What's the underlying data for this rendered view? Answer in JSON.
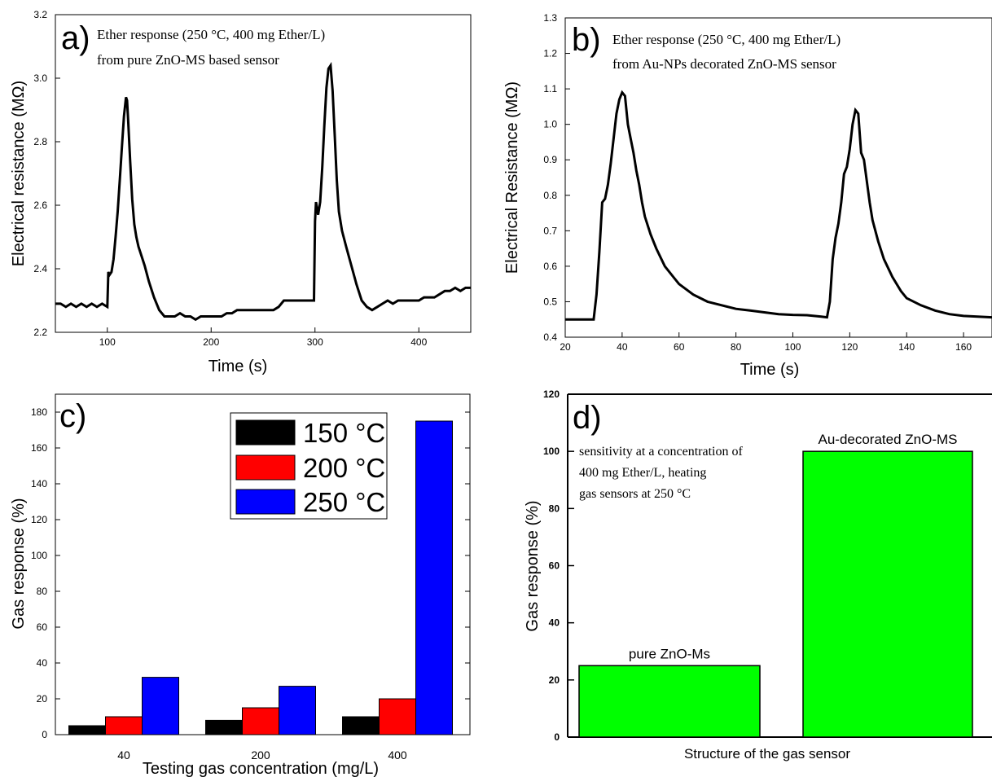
{
  "chart_data": [
    {
      "panel": "a)",
      "type": "line",
      "annotation": [
        "Ether response (250 °C, 400 mg Ether/L)",
        "from pure ZnO-MS based sensor"
      ],
      "xlabel": "Time (s)",
      "ylabel": "Electrical resistance (MΩ)",
      "xlim": [
        50,
        450
      ],
      "ylim": [
        2.2,
        3.2
      ],
      "xticks": [
        100,
        200,
        300,
        400
      ],
      "yticks": [
        2.2,
        2.4,
        2.6,
        2.8,
        3.0,
        3.2
      ],
      "ytick_labels": [
        "2.2",
        "2.4",
        "2.6",
        "2.8",
        "3.0",
        "3.2"
      ],
      "color": "#000000",
      "x": [
        50,
        55,
        60,
        65,
        70,
        75,
        80,
        85,
        90,
        95,
        100,
        101,
        102,
        104,
        106,
        108,
        110,
        112,
        114,
        116,
        118,
        119,
        120,
        122,
        124,
        126,
        128,
        130,
        133,
        136,
        140,
        145,
        150,
        155,
        160,
        165,
        170,
        175,
        180,
        185,
        190,
        195,
        200,
        205,
        210,
        215,
        220,
        225,
        230,
        235,
        240,
        245,
        250,
        255,
        260,
        265,
        270,
        275,
        280,
        285,
        290,
        295,
        299,
        300,
        301,
        303,
        305,
        307,
        309,
        311,
        313,
        315,
        317,
        319,
        321,
        323,
        326,
        330,
        335,
        340,
        345,
        350,
        355,
        360,
        365,
        370,
        375,
        380,
        385,
        390,
        395,
        400,
        405,
        410,
        415,
        420,
        425,
        430,
        435,
        440,
        445,
        450
      ],
      "y": [
        2.29,
        2.29,
        2.28,
        2.29,
        2.28,
        2.29,
        2.28,
        2.29,
        2.28,
        2.29,
        2.28,
        2.39,
        2.38,
        2.39,
        2.43,
        2.5,
        2.58,
        2.68,
        2.78,
        2.88,
        2.94,
        2.93,
        2.87,
        2.74,
        2.62,
        2.54,
        2.5,
        2.47,
        2.44,
        2.41,
        2.36,
        2.31,
        2.27,
        2.25,
        2.25,
        2.25,
        2.26,
        2.25,
        2.25,
        2.24,
        2.25,
        2.25,
        2.25,
        2.25,
        2.25,
        2.26,
        2.26,
        2.27,
        2.27,
        2.27,
        2.27,
        2.27,
        2.27,
        2.27,
        2.27,
        2.28,
        2.3,
        2.3,
        2.3,
        2.3,
        2.3,
        2.3,
        2.3,
        2.55,
        2.61,
        2.57,
        2.61,
        2.72,
        2.85,
        2.97,
        3.03,
        3.04,
        2.96,
        2.82,
        2.68,
        2.58,
        2.52,
        2.47,
        2.41,
        2.35,
        2.3,
        2.28,
        2.27,
        2.28,
        2.29,
        2.3,
        2.29,
        2.3,
        2.3,
        2.3,
        2.3,
        2.3,
        2.31,
        2.31,
        2.31,
        2.32,
        2.33,
        2.33,
        2.34,
        2.33,
        2.34,
        2.34
      ]
    },
    {
      "panel": "b)",
      "type": "line",
      "annotation": [
        "Ether response (250 °C, 400 mg Ether/L)",
        "from Au-NPs decorated ZnO-MS sensor"
      ],
      "xlabel": "Time (s)",
      "ylabel": "Electrical Resistance (MΩ)",
      "xlim": [
        20,
        170
      ],
      "ylim": [
        0.4,
        1.3
      ],
      "xticks": [
        20,
        40,
        60,
        80,
        100,
        120,
        140,
        160
      ],
      "yticks": [
        0.4,
        0.5,
        0.6,
        0.7,
        0.8,
        0.9,
        1.0,
        1.1,
        1.2,
        1.3
      ],
      "ytick_labels": [
        "0.4",
        "0.5",
        "0.6",
        "0.7",
        "0.8",
        "0.9",
        "1.0",
        "1.1",
        "1.2",
        "1.3"
      ],
      "color": "#000000",
      "x": [
        20,
        25,
        28,
        30,
        31,
        32,
        33,
        34,
        35,
        36,
        37,
        38,
        39,
        40,
        41,
        42,
        43,
        44,
        45,
        46,
        47,
        48,
        50,
        52,
        55,
        58,
        60,
        65,
        70,
        75,
        80,
        85,
        90,
        95,
        100,
        105,
        110,
        112,
        113,
        114,
        115,
        116,
        117,
        118,
        119,
        120,
        121,
        122,
        123,
        124,
        125,
        126,
        127,
        128,
        130,
        132,
        135,
        138,
        140,
        145,
        150,
        155,
        160,
        165,
        170
      ],
      "y": [
        0.45,
        0.45,
        0.45,
        0.45,
        0.52,
        0.64,
        0.78,
        0.79,
        0.83,
        0.89,
        0.96,
        1.03,
        1.07,
        1.09,
        1.08,
        1.0,
        0.96,
        0.92,
        0.87,
        0.83,
        0.78,
        0.74,
        0.69,
        0.65,
        0.6,
        0.57,
        0.55,
        0.52,
        0.5,
        0.49,
        0.48,
        0.475,
        0.47,
        0.465,
        0.463,
        0.462,
        0.458,
        0.456,
        0.5,
        0.62,
        0.68,
        0.72,
        0.78,
        0.86,
        0.88,
        0.93,
        1.0,
        1.04,
        1.03,
        0.92,
        0.9,
        0.84,
        0.78,
        0.73,
        0.67,
        0.62,
        0.57,
        0.53,
        0.51,
        0.49,
        0.475,
        0.465,
        0.46,
        0.458,
        0.456
      ]
    },
    {
      "panel": "c)",
      "type": "bar",
      "xlabel": "Testing gas concentration (mg/L)",
      "ylabel": "Gas response (%)",
      "categories": [
        "40",
        "200",
        "400"
      ],
      "ylim": [
        0,
        190
      ],
      "yticks": [
        0,
        20,
        40,
        60,
        80,
        100,
        120,
        140,
        160,
        180
      ],
      "ytick_labels": [
        "0",
        "20",
        "40",
        "60",
        "80",
        "100",
        "120",
        "140",
        "160",
        "180"
      ],
      "series": [
        {
          "name": "150 °C",
          "color": "#000000",
          "values": [
            5,
            8,
            10
          ]
        },
        {
          "name": "200 °C",
          "color": "#ff0000",
          "values": [
            10,
            15,
            20
          ]
        },
        {
          "name": "250 °C",
          "color": "#0000ff",
          "values": [
            32,
            27,
            175
          ]
        }
      ],
      "legend": "top-right"
    },
    {
      "panel": "d)",
      "type": "bar",
      "annotation": [
        "sensitivity at a concentration of",
        "400 mg Ether/L, heating",
        "gas sensors at 250 °C"
      ],
      "xlabel": "Structure of the gas sensor",
      "ylabel": "Gas response (%)",
      "ylim": [
        0,
        120
      ],
      "yticks": [
        0,
        20,
        40,
        60,
        80,
        100,
        120
      ],
      "ytick_labels": [
        "0",
        "20",
        "40",
        "60",
        "80",
        "100",
        "120"
      ],
      "categories": [
        "pure ZnO-Ms",
        "Au-decorated ZnO-MS"
      ],
      "values": [
        25,
        100
      ],
      "color": "#00ff00"
    }
  ]
}
